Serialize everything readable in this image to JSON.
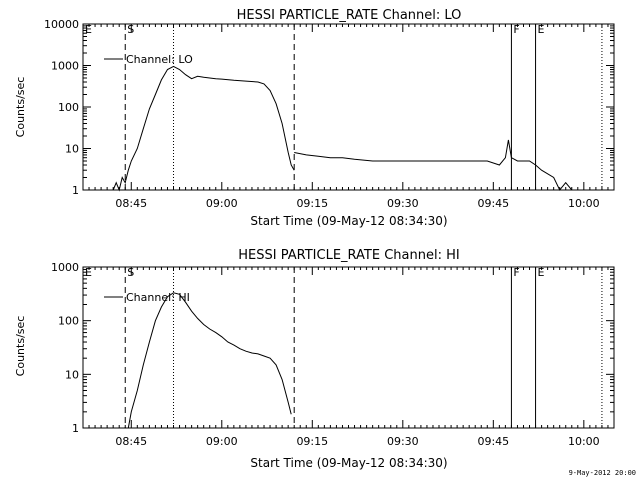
{
  "chart_data": [
    {
      "type": "line",
      "title": "HESSI PARTICLE_RATE Channel: LO",
      "xlabel": "Start Time (09-May-12 08:34:30)",
      "ylabel": "Counts/sec",
      "yscale": "log",
      "ylim": [
        1,
        10000
      ],
      "xlim": [
        "08:37",
        "10:05"
      ],
      "x_ticks": [
        "08:45",
        "09:00",
        "09:15",
        "09:30",
        "09:45",
        "10:00"
      ],
      "y_ticks": [
        "1",
        "10",
        "100",
        "1000",
        "10000"
      ],
      "legend": {
        "label": "Channel: LO",
        "placement": "top-left"
      },
      "markers": [
        {
          "label": "E",
          "time": "08:37",
          "style": "solid"
        },
        {
          "label": "S",
          "time": "08:44",
          "style": "dashed"
        },
        {
          "label": "",
          "time": "08:52",
          "style": "dotted"
        },
        {
          "label": "",
          "time": "09:12",
          "style": "dashed"
        },
        {
          "label": "F",
          "time": "09:48",
          "style": "solid"
        },
        {
          "label": "E",
          "time": "09:52",
          "style": "solid"
        },
        {
          "label": "",
          "time": "10:03",
          "style": "dotted"
        }
      ],
      "series": [
        {
          "name": "Channel: LO",
          "segments": [
            [
              [
                "08:42",
                1
              ],
              [
                "08:42.5",
                1.5
              ],
              [
                "08:43",
                1
              ],
              [
                "08:43.5",
                2
              ],
              [
                "08:44",
                1.5
              ],
              [
                "08:44.5",
                3
              ],
              [
                "08:45",
                5
              ],
              [
                "08:46",
                10
              ],
              [
                "08:47",
                30
              ],
              [
                "08:48",
                90
              ],
              [
                "08:49",
                200
              ],
              [
                "08:50",
                450
              ],
              [
                "08:51",
                800
              ],
              [
                "08:52",
                950
              ],
              [
                "08:53",
                800
              ],
              [
                "08:54",
                600
              ],
              [
                "08:55",
                480
              ],
              [
                "08:56",
                550
              ],
              [
                "08:57",
                520
              ],
              [
                "08:58",
                500
              ],
              [
                "08:59",
                480
              ],
              [
                "09:00",
                470
              ],
              [
                "09:02",
                440
              ],
              [
                "09:04",
                420
              ],
              [
                "09:06",
                400
              ],
              [
                "09:07",
                360
              ],
              [
                "09:08",
                250
              ],
              [
                "09:09",
                120
              ],
              [
                "09:10",
                40
              ],
              [
                "09:11",
                8
              ],
              [
                "09:11.5",
                4
              ],
              [
                "09:12",
                3
              ]
            ],
            [
              [
                "09:12",
                8
              ],
              [
                "09:14",
                7
              ],
              [
                "09:16",
                6.5
              ],
              [
                "09:18",
                6
              ],
              [
                "09:20",
                6
              ],
              [
                "09:22",
                5.5
              ],
              [
                "09:25",
                5
              ],
              [
                "09:30",
                5
              ],
              [
                "09:35",
                5
              ],
              [
                "09:40",
                5
              ],
              [
                "09:44",
                5
              ],
              [
                "09:46",
                4
              ],
              [
                "09:47",
                6
              ],
              [
                "09:47.5",
                16
              ],
              [
                "09:48",
                6
              ],
              [
                "09:49",
                5
              ],
              [
                "09:51",
                5
              ],
              [
                "09:52",
                4
              ],
              [
                "09:53",
                3
              ],
              [
                "09:55",
                2
              ],
              [
                "09:56",
                1
              ],
              [
                "09:57",
                1.5
              ],
              [
                "09:58",
                1
              ],
              [
                "10:00",
                1
              ]
            ]
          ]
        }
      ]
    },
    {
      "type": "line",
      "title": "HESSI PARTICLE_RATE Channel: HI",
      "xlabel": "Start Time (09-May-12 08:34:30)",
      "ylabel": "Counts/sec",
      "yscale": "log",
      "ylim": [
        1,
        1000
      ],
      "xlim": [
        "08:37",
        "10:05"
      ],
      "x_ticks": [
        "08:45",
        "09:00",
        "09:15",
        "09:30",
        "09:45",
        "10:00"
      ],
      "y_ticks": [
        "1",
        "10",
        "100",
        "1000"
      ],
      "legend": {
        "label": "Channel: HI",
        "placement": "top-left"
      },
      "markers": [
        {
          "label": "E",
          "time": "08:37",
          "style": "solid"
        },
        {
          "label": "S",
          "time": "08:44",
          "style": "dashed"
        },
        {
          "label": "",
          "time": "08:52",
          "style": "dotted"
        },
        {
          "label": "",
          "time": "09:12",
          "style": "dashed"
        },
        {
          "label": "F",
          "time": "09:48",
          "style": "solid"
        },
        {
          "label": "E",
          "time": "09:52",
          "style": "solid"
        },
        {
          "label": "",
          "time": "10:03",
          "style": "dotted"
        }
      ],
      "series": [
        {
          "name": "Channel: HI",
          "segments": [
            [
              [
                "08:44.5",
                1
              ],
              [
                "08:45",
                2
              ],
              [
                "08:46",
                5
              ],
              [
                "08:47",
                15
              ],
              [
                "08:48",
                40
              ],
              [
                "08:49",
                100
              ],
              [
                "08:50",
                180
              ],
              [
                "08:51",
                280
              ],
              [
                "08:52",
                330
              ],
              [
                "08:53",
                310
              ],
              [
                "08:54",
                220
              ],
              [
                "08:55",
                150
              ],
              [
                "08:56",
                110
              ],
              [
                "08:57",
                85
              ],
              [
                "08:58",
                70
              ],
              [
                "08:59",
                60
              ],
              [
                "09:00",
                50
              ],
              [
                "09:01",
                40
              ],
              [
                "09:02",
                35
              ],
              [
                "09:03",
                30
              ],
              [
                "09:04",
                27
              ],
              [
                "09:05",
                25
              ],
              [
                "09:06",
                24
              ],
              [
                "09:07",
                22
              ],
              [
                "09:08",
                20
              ],
              [
                "09:09",
                15
              ],
              [
                "09:10",
                8
              ],
              [
                "09:11",
                3
              ],
              [
                "09:11.5",
                1.8
              ]
            ]
          ]
        }
      ]
    }
  ],
  "footer": {
    "timestamp": "9-May-2012 20:00"
  }
}
